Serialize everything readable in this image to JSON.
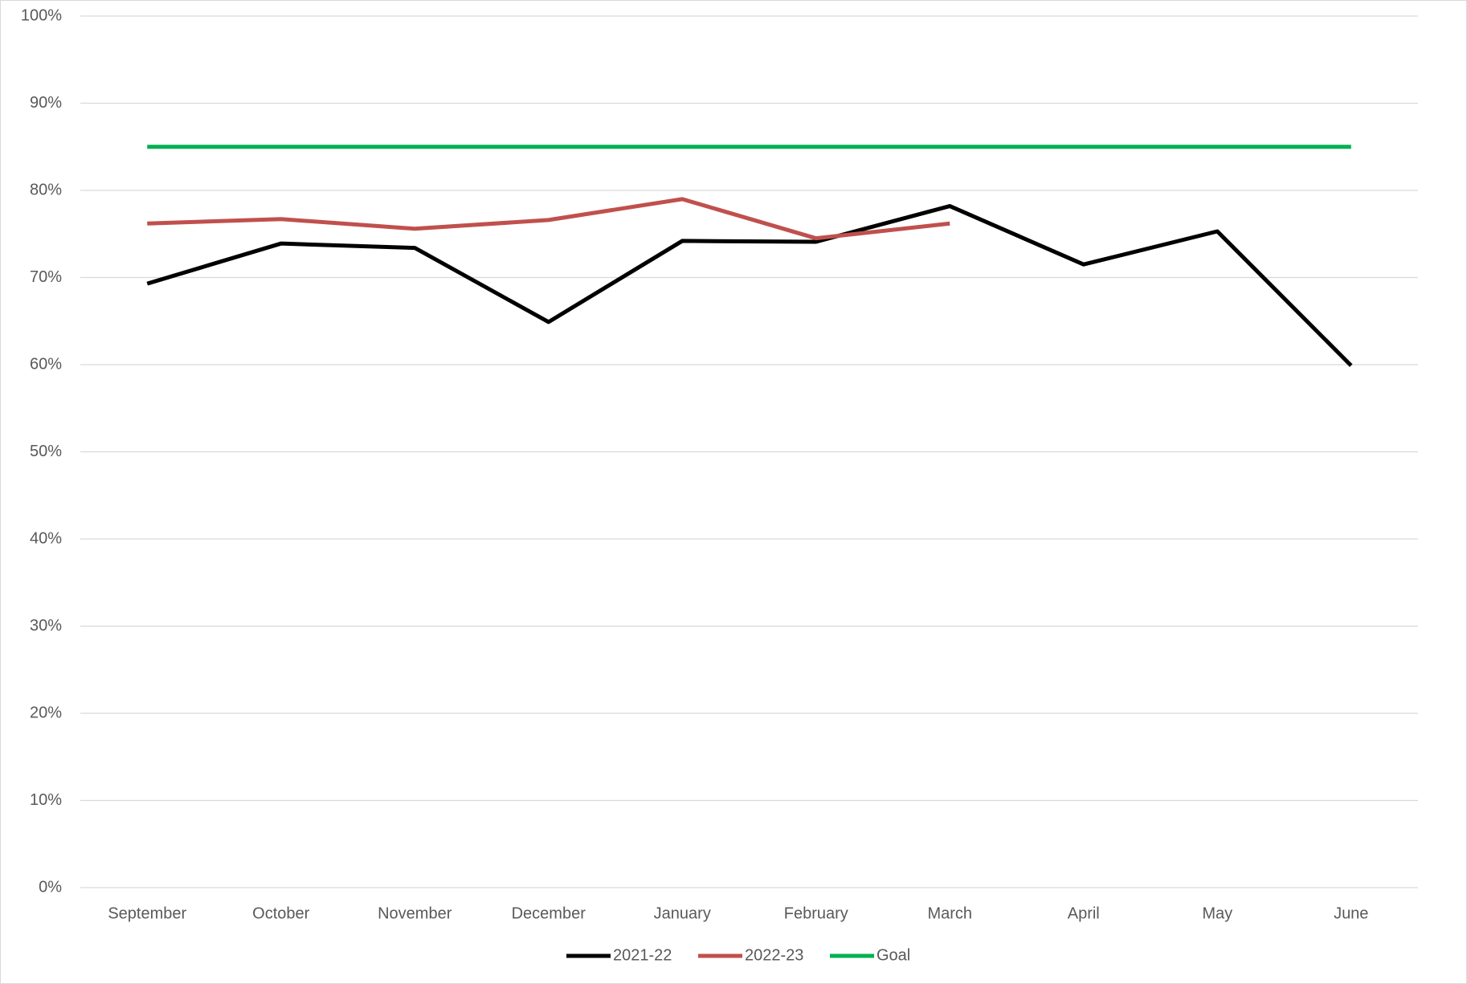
{
  "chart_data": {
    "type": "line",
    "categories": [
      "September",
      "October",
      "November",
      "December",
      "January",
      "February",
      "March",
      "April",
      "May",
      "June"
    ],
    "series": [
      {
        "name": "2021-22",
        "color": "#000000",
        "values": [
          69.3,
          73.9,
          73.4,
          64.9,
          74.2,
          74.1,
          78.2,
          71.5,
          75.3,
          59.9
        ]
      },
      {
        "name": "2022-23",
        "color": "#c0504d",
        "values": [
          76.2,
          76.7,
          75.6,
          76.6,
          79.0,
          74.5,
          76.2,
          null,
          null,
          null
        ]
      },
      {
        "name": "Goal",
        "color": "#00b050",
        "values": [
          85,
          85,
          85,
          85,
          85,
          85,
          85,
          85,
          85,
          85
        ]
      }
    ],
    "ylim": [
      0,
      100
    ],
    "yticks": [
      {
        "value": 0,
        "label": "0%"
      },
      {
        "value": 10,
        "label": "10%"
      },
      {
        "value": 20,
        "label": "20%"
      },
      {
        "value": 30,
        "label": "30%"
      },
      {
        "value": 40,
        "label": "40%"
      },
      {
        "value": 50,
        "label": "50%"
      },
      {
        "value": 60,
        "label": "60%"
      },
      {
        "value": 70,
        "label": "70%"
      },
      {
        "value": 80,
        "label": "80%"
      },
      {
        "value": 90,
        "label": "90%"
      },
      {
        "value": 100,
        "label": "100%"
      }
    ],
    "grid": true,
    "legend": "bottom"
  }
}
